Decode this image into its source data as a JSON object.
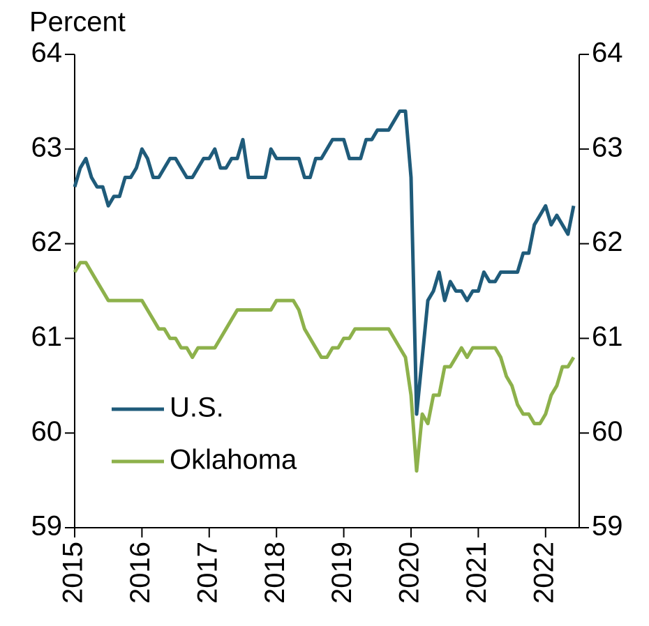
{
  "chart_data": {
    "type": "line",
    "ylabel": "Percent",
    "xlim": [
      2015,
      2022.5
    ],
    "xticks": [
      2015,
      2016,
      2017,
      2018,
      2019,
      2020,
      2021,
      2022
    ],
    "ylim": [
      59,
      64
    ],
    "yticks": [
      59,
      60,
      61,
      62,
      63,
      64
    ],
    "y2lim": [
      59,
      64
    ],
    "y2ticks": [
      59,
      60,
      61,
      62,
      63,
      64
    ],
    "x": [
      2015,
      2015.083,
      2015.167,
      2015.25,
      2015.333,
      2015.417,
      2015.5,
      2015.583,
      2015.667,
      2015.75,
      2015.833,
      2015.917,
      2016,
      2016.083,
      2016.167,
      2016.25,
      2016.333,
      2016.417,
      2016.5,
      2016.583,
      2016.667,
      2016.75,
      2016.833,
      2016.917,
      2017,
      2017.083,
      2017.167,
      2017.25,
      2017.333,
      2017.417,
      2017.5,
      2017.583,
      2017.667,
      2017.75,
      2017.833,
      2017.917,
      2018,
      2018.083,
      2018.167,
      2018.25,
      2018.333,
      2018.417,
      2018.5,
      2018.583,
      2018.667,
      2018.75,
      2018.833,
      2018.917,
      2019,
      2019.083,
      2019.167,
      2019.25,
      2019.333,
      2019.417,
      2019.5,
      2019.583,
      2019.667,
      2019.75,
      2019.833,
      2019.917,
      2020,
      2020.083,
      2020.167,
      2020.25,
      2020.333,
      2020.417,
      2020.5,
      2020.583,
      2020.667,
      2020.75,
      2020.833,
      2020.917,
      2021,
      2021.083,
      2021.167,
      2021.25,
      2021.333,
      2021.417,
      2021.5,
      2021.583,
      2021.667,
      2021.75,
      2021.833,
      2021.917,
      2022,
      2022.083,
      2022.167,
      2022.25,
      2022.333,
      2022.417
    ],
    "series": [
      {
        "name": "U.S.",
        "color": "#1f5b7a",
        "values": [
          62.6,
          62.8,
          62.9,
          62.7,
          62.6,
          62.6,
          62.4,
          62.5,
          62.5,
          62.7,
          62.7,
          62.8,
          63.0,
          62.9,
          62.7,
          62.7,
          62.8,
          62.9,
          62.9,
          62.8,
          62.7,
          62.7,
          62.8,
          62.9,
          62.9,
          63.0,
          62.8,
          62.8,
          62.9,
          62.9,
          63.1,
          62.7,
          62.7,
          62.7,
          62.7,
          63.0,
          62.9,
          62.9,
          62.9,
          62.9,
          62.9,
          62.7,
          62.7,
          62.9,
          62.9,
          63.0,
          63.1,
          63.1,
          63.1,
          62.9,
          62.9,
          62.9,
          63.1,
          63.1,
          63.2,
          63.2,
          63.2,
          63.3,
          63.4,
          63.4,
          62.7,
          60.2,
          60.8,
          61.4,
          61.5,
          61.7,
          61.4,
          61.6,
          61.5,
          61.5,
          61.4,
          61.5,
          61.5,
          61.7,
          61.6,
          61.6,
          61.7,
          61.7,
          61.7,
          61.7,
          61.9,
          61.9,
          62.2,
          62.3,
          62.4,
          62.2,
          62.3,
          62.2,
          62.1,
          62.4
        ]
      },
      {
        "name": "Oklahoma",
        "color": "#8db14b",
        "values": [
          61.7,
          61.8,
          61.8,
          61.7,
          61.6,
          61.5,
          61.4,
          61.4,
          61.4,
          61.4,
          61.4,
          61.4,
          61.4,
          61.3,
          61.2,
          61.1,
          61.1,
          61.0,
          61.0,
          60.9,
          60.9,
          60.8,
          60.9,
          60.9,
          60.9,
          60.9,
          61.0,
          61.1,
          61.2,
          61.3,
          61.3,
          61.3,
          61.3,
          61.3,
          61.3,
          61.3,
          61.4,
          61.4,
          61.4,
          61.4,
          61.3,
          61.1,
          61.0,
          60.9,
          60.8,
          60.8,
          60.9,
          60.9,
          61.0,
          61.0,
          61.1,
          61.1,
          61.1,
          61.1,
          61.1,
          61.1,
          61.1,
          61.0,
          60.9,
          60.8,
          60.4,
          59.6,
          60.2,
          60.1,
          60.4,
          60.4,
          60.7,
          60.7,
          60.8,
          60.9,
          60.8,
          60.9,
          60.9,
          60.9,
          60.9,
          60.9,
          60.8,
          60.6,
          60.5,
          60.3,
          60.2,
          60.2,
          60.1,
          60.1,
          60.2,
          60.4,
          60.5,
          60.7,
          60.7,
          60.8
        ]
      }
    ]
  }
}
